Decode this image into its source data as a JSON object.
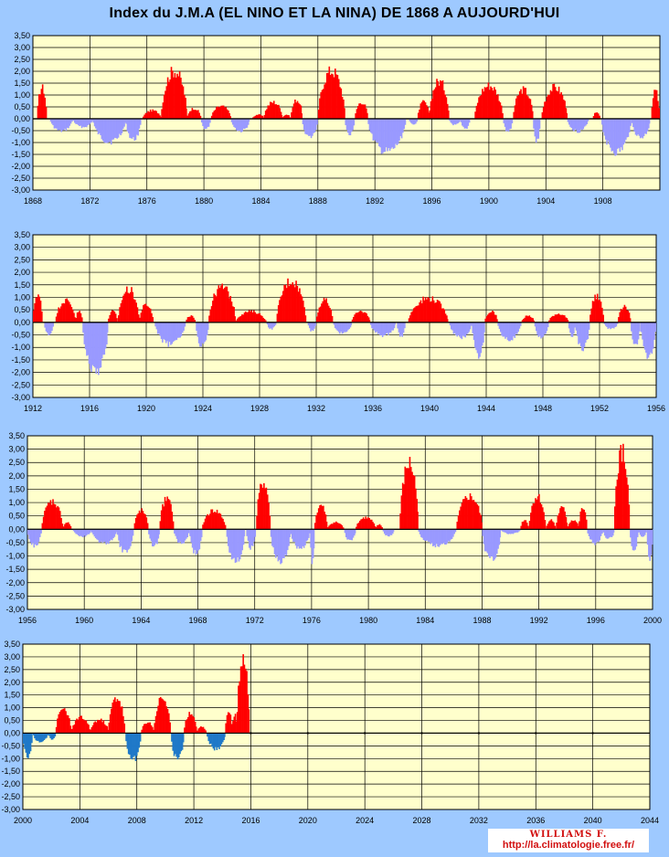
{
  "title": "Index du J.M.A  (EL NINO ET LA NINA) DE 1868 A AUJOURD'HUI",
  "credit": {
    "name": "WILLIAMS F.",
    "url": "http://la.climatologie.free.fr/"
  },
  "colors": {
    "background": "#9ec9ff",
    "plot": "#ffffcc",
    "positive": "#ff0000",
    "negative_early": "#9999ff",
    "negative_late": "#1e78c8",
    "grid": "#000000"
  },
  "chart_data": [
    {
      "type": "bar",
      "xlim": [
        1868,
        1912
      ],
      "ylim": [
        -3,
        3.5
      ],
      "x_ticks": [
        "1868",
        "1872",
        "1876",
        "1880",
        "1884",
        "1888",
        "1892",
        "1896",
        "1900",
        "1904",
        "1908"
      ],
      "y_ticks": [
        "3,50",
        "3,00",
        "2,50",
        "2,00",
        "1,50",
        "1,00",
        "0,50",
        "0,00",
        "-0,50",
        "-1,00",
        "-1,50",
        "-2,00",
        "-2,50",
        "-3,00"
      ],
      "neg_color": "#9999ff",
      "episodes": [
        [
          1868.3,
          1869.0,
          1.5
        ],
        [
          1869.2,
          1870.8,
          -0.6
        ],
        [
          1870.8,
          1872.2,
          -0.4
        ],
        [
          1872.2,
          1874.5,
          -1.1
        ],
        [
          1874.5,
          1875.6,
          -1.0
        ],
        [
          1875.7,
          1877.0,
          0.4
        ],
        [
          1877.0,
          1878.8,
          2.3
        ],
        [
          1878.8,
          1879.8,
          0.5
        ],
        [
          1879.8,
          1880.5,
          -0.5
        ],
        [
          1880.5,
          1881.9,
          0.6
        ],
        [
          1881.9,
          1883.2,
          -0.6
        ],
        [
          1883.4,
          1884.2,
          0.2
        ],
        [
          1884.2,
          1885.5,
          0.8
        ],
        [
          1885.5,
          1886.1,
          0.2
        ],
        [
          1886.1,
          1886.9,
          0.9
        ],
        [
          1886.9,
          1888.0,
          -0.9
        ],
        [
          1888.0,
          1889.9,
          2.3
        ],
        [
          1889.9,
          1890.6,
          -0.8
        ],
        [
          1890.6,
          1891.5,
          0.8
        ],
        [
          1891.5,
          1894.2,
          -1.6
        ],
        [
          1894.4,
          1895.0,
          -0.3
        ],
        [
          1895.0,
          1895.8,
          0.8
        ],
        [
          1895.8,
          1897.2,
          1.8
        ],
        [
          1897.2,
          1898.0,
          -0.3
        ],
        [
          1898.0,
          1898.7,
          -0.5
        ],
        [
          1899.0,
          1901.0,
          1.6
        ],
        [
          1901.0,
          1901.7,
          -0.6
        ],
        [
          1901.7,
          1903.1,
          1.4
        ],
        [
          1903.1,
          1903.6,
          -1.1
        ],
        [
          1903.7,
          1905.5,
          1.5
        ],
        [
          1905.5,
          1907.0,
          -0.6
        ],
        [
          1907.3,
          1907.8,
          0.3
        ],
        [
          1907.9,
          1910.0,
          -1.6
        ],
        [
          1910.0,
          1911.3,
          -0.9
        ],
        [
          1911.4,
          1912.0,
          1.3
        ]
      ]
    },
    {
      "type": "bar",
      "xlim": [
        1912,
        1956
      ],
      "ylim": [
        -3,
        3.5
      ],
      "x_ticks": [
        "1912",
        "1916",
        "1920",
        "1924",
        "1928",
        "1932",
        "1936",
        "1940",
        "1944",
        "1948",
        "1952",
        "1956"
      ],
      "y_ticks": [
        "3,50",
        "3,00",
        "2,50",
        "2,00",
        "1,50",
        "1,00",
        "0,50",
        "0,00",
        "-0,50",
        "-1,00",
        "-1,50",
        "-2,00",
        "-2,50",
        "-3,00"
      ],
      "neg_color": "#9999ff",
      "episodes": [
        [
          1912.0,
          1912.7,
          1.3
        ],
        [
          1912.8,
          1913.5,
          -0.6
        ],
        [
          1913.6,
          1915.0,
          1.0
        ],
        [
          1915.0,
          1915.5,
          0.5
        ],
        [
          1915.5,
          1917.3,
          -2.3
        ],
        [
          1917.3,
          1918.0,
          0.5
        ],
        [
          1918.0,
          1919.5,
          1.5
        ],
        [
          1919.5,
          1920.5,
          0.8
        ],
        [
          1920.6,
          1922.8,
          -1.0
        ],
        [
          1922.8,
          1923.5,
          0.3
        ],
        [
          1923.5,
          1924.4,
          -1.1
        ],
        [
          1924.4,
          1926.3,
          1.6
        ],
        [
          1926.3,
          1928.5,
          0.5
        ],
        [
          1928.5,
          1929.2,
          -0.3
        ],
        [
          1929.2,
          1931.3,
          1.9
        ],
        [
          1931.4,
          1932.0,
          -0.4
        ],
        [
          1932.0,
          1933.2,
          1.0
        ],
        [
          1933.2,
          1934.5,
          -0.5
        ],
        [
          1934.5,
          1935.8,
          0.5
        ],
        [
          1935.8,
          1937.6,
          -0.6
        ],
        [
          1937.7,
          1938.3,
          -0.7
        ],
        [
          1938.5,
          1941.3,
          1.1
        ],
        [
          1941.4,
          1943.0,
          -0.7
        ],
        [
          1943.0,
          1943.9,
          -1.5
        ],
        [
          1943.9,
          1944.8,
          0.5
        ],
        [
          1944.8,
          1946.5,
          -0.8
        ],
        [
          1946.5,
          1947.4,
          0.3
        ],
        [
          1947.4,
          1948.4,
          -0.7
        ],
        [
          1948.4,
          1949.8,
          0.4
        ],
        [
          1949.8,
          1950.3,
          -0.6
        ],
        [
          1950.3,
          1951.3,
          -1.2
        ],
        [
          1951.3,
          1952.3,
          1.2
        ],
        [
          1952.3,
          1953.3,
          -0.3
        ],
        [
          1953.3,
          1954.2,
          0.7
        ],
        [
          1954.2,
          1954.9,
          -1.0
        ],
        [
          1954.9,
          1956.0,
          -1.5
        ]
      ]
    },
    {
      "type": "bar",
      "xlim": [
        1956,
        2000
      ],
      "ylim": [
        -3,
        3.5
      ],
      "x_ticks": [
        "1956",
        "1960",
        "1964",
        "1968",
        "1972",
        "1976",
        "1980",
        "1984",
        "1988",
        "1992",
        "1996",
        "2000"
      ],
      "y_ticks": [
        "3,50",
        "3,00",
        "2,50",
        "2,00",
        "1,50",
        "1,00",
        "0,50",
        "0,00",
        "-0,50",
        "-1,00",
        "-1,50",
        "-2,00",
        "-2,50",
        "-3,00"
      ],
      "neg_color": "#9999ff",
      "episodes": [
        [
          1956.0,
          1957.0,
          -0.7
        ],
        [
          1957.0,
          1958.5,
          1.2
        ],
        [
          1958.5,
          1959.1,
          0.3
        ],
        [
          1959.2,
          1960.5,
          -0.3
        ],
        [
          1960.5,
          1962.3,
          -0.6
        ],
        [
          1962.3,
          1963.5,
          -1.0
        ],
        [
          1963.5,
          1964.5,
          0.8
        ],
        [
          1964.5,
          1965.3,
          -0.7
        ],
        [
          1965.3,
          1966.3,
          1.3
        ],
        [
          1966.3,
          1967.4,
          -0.6
        ],
        [
          1967.4,
          1968.3,
          -1.0
        ],
        [
          1968.3,
          1970.0,
          0.8
        ],
        [
          1970.0,
          1971.3,
          -1.4
        ],
        [
          1971.4,
          1972.1,
          -0.8
        ],
        [
          1972.1,
          1973.1,
          2.0
        ],
        [
          1973.1,
          1974.5,
          -1.4
        ],
        [
          1974.5,
          1975.9,
          -0.8
        ],
        [
          1975.9,
          1976.2,
          -1.4
        ],
        [
          1976.2,
          1977.1,
          1.0
        ],
        [
          1977.1,
          1978.3,
          0.3
        ],
        [
          1978.3,
          1979.1,
          -0.5
        ],
        [
          1979.1,
          1980.5,
          0.5
        ],
        [
          1980.5,
          1981.0,
          0.2
        ],
        [
          1981.0,
          1981.8,
          -0.3
        ],
        [
          1982.2,
          1983.5,
          2.8
        ],
        [
          1983.5,
          1986.2,
          -0.7
        ],
        [
          1986.2,
          1988.0,
          1.4
        ],
        [
          1988.0,
          1989.3,
          -1.3
        ],
        [
          1989.3,
          1990.7,
          -0.2
        ],
        [
          1990.7,
          1991.3,
          0.4
        ],
        [
          1991.3,
          1992.5,
          1.4
        ],
        [
          1992.5,
          1993.2,
          0.4
        ],
        [
          1993.2,
          1994.0,
          0.9
        ],
        [
          1994.0,
          1994.8,
          0.4
        ],
        [
          1994.8,
          1995.4,
          0.9
        ],
        [
          1995.4,
          1996.5,
          -0.6
        ],
        [
          1996.5,
          1997.3,
          -0.4
        ],
        [
          1997.3,
          1998.4,
          3.3
        ],
        [
          1998.4,
          1999.0,
          -0.9
        ],
        [
          1999.0,
          1999.6,
          -0.3
        ],
        [
          1999.6,
          2000.0,
          -1.3
        ]
      ]
    },
    {
      "type": "bar",
      "xlim": [
        2000,
        2044
      ],
      "ylim": [
        -3,
        3.5
      ],
      "x_ticks": [
        "2000",
        "2004",
        "2008",
        "2012",
        "2016",
        "2020",
        "2024",
        "2028",
        "2032",
        "2036",
        "2040",
        "2044"
      ],
      "y_ticks": [
        "3,50",
        "3,00",
        "2,50",
        "2,00",
        "1,50",
        "1,00",
        "0,50",
        "0,00",
        "-0,50",
        "-1,00",
        "-1,50",
        "-2,00",
        "-2,50",
        "-3,00"
      ],
      "neg_color": "#1e78c8",
      "episodes": [
        [
          2000.0,
          2000.7,
          -1.1
        ],
        [
          2000.7,
          2001.8,
          -0.4
        ],
        [
          2001.8,
          2002.3,
          -0.3
        ],
        [
          2002.3,
          2003.4,
          1.1
        ],
        [
          2003.4,
          2004.7,
          0.7
        ],
        [
          2004.7,
          2006.0,
          0.6
        ],
        [
          2006.0,
          2007.2,
          1.6
        ],
        [
          2007.2,
          2008.3,
          -1.2
        ],
        [
          2008.3,
          2009.2,
          0.5
        ],
        [
          2009.2,
          2010.4,
          1.6
        ],
        [
          2010.4,
          2011.3,
          -1.2
        ],
        [
          2011.3,
          2012.2,
          0.9
        ],
        [
          2012.2,
          2012.9,
          0.3
        ],
        [
          2012.9,
          2014.2,
          -0.7
        ],
        [
          2014.2,
          2014.7,
          1.0
        ],
        [
          2014.7,
          2015.0,
          0.9
        ],
        [
          2015.0,
          2015.9,
          3.4
        ]
      ]
    }
  ]
}
